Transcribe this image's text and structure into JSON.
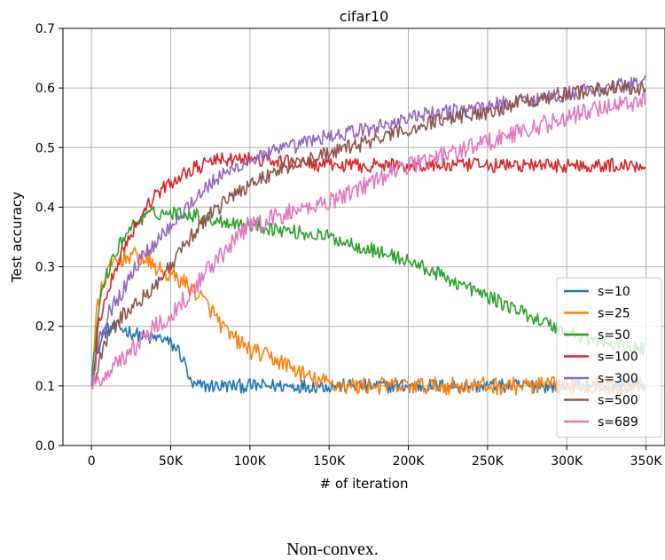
{
  "caption": "Non-convex.",
  "chart_data": {
    "type": "line",
    "title": "cifar10",
    "xlabel": "# of iteration",
    "ylabel": "Test accuracy",
    "xlim": [
      -18000,
      362000
    ],
    "ylim": [
      0.0,
      0.7
    ],
    "xticks": [
      0,
      50000,
      100000,
      150000,
      200000,
      250000,
      300000,
      350000
    ],
    "xtick_labels": [
      "0",
      "50K",
      "100K",
      "150K",
      "200K",
      "250K",
      "300K",
      "350K"
    ],
    "yticks": [
      0.0,
      0.1,
      0.2,
      0.3,
      0.4,
      0.5,
      0.6,
      0.7
    ],
    "ytick_labels": [
      "0.0",
      "0.1",
      "0.2",
      "0.3",
      "0.4",
      "0.5",
      "0.6",
      "0.7"
    ],
    "grid": true,
    "legend_position": "lower-right",
    "series": [
      {
        "name": "s=10",
        "color": "#1f77b4",
        "noise": 0.012,
        "x": [
          0,
          3000,
          8000,
          15000,
          25000,
          35000,
          45000,
          55000,
          60000,
          63000,
          70000,
          80000,
          100000,
          150000,
          200000,
          250000,
          300000,
          350000
        ],
        "y": [
          0.1,
          0.15,
          0.19,
          0.2,
          0.19,
          0.18,
          0.18,
          0.16,
          0.13,
          0.1,
          0.1,
          0.1,
          0.1,
          0.1,
          0.1,
          0.1,
          0.1,
          0.1
        ]
      },
      {
        "name": "s=25",
        "color": "#ff7f0e",
        "noise": 0.015,
        "x": [
          0,
          3000,
          8000,
          15000,
          25000,
          35000,
          45000,
          55000,
          65000,
          75000,
          85000,
          100000,
          120000,
          140000,
          160000,
          180000,
          200000,
          250000,
          300000,
          350000
        ],
        "y": [
          0.1,
          0.22,
          0.28,
          0.31,
          0.32,
          0.31,
          0.29,
          0.28,
          0.26,
          0.23,
          0.19,
          0.16,
          0.14,
          0.11,
          0.1,
          0.1,
          0.1,
          0.1,
          0.1,
          0.1
        ]
      },
      {
        "name": "s=50",
        "color": "#2ca02c",
        "noise": 0.012,
        "x": [
          0,
          5000,
          10000,
          20000,
          30000,
          40000,
          50000,
          60000,
          75000,
          100000,
          125000,
          150000,
          175000,
          200000,
          225000,
          250000,
          275000,
          300000,
          325000,
          350000
        ],
        "y": [
          0.1,
          0.24,
          0.29,
          0.35,
          0.38,
          0.39,
          0.39,
          0.39,
          0.38,
          0.37,
          0.36,
          0.35,
          0.33,
          0.31,
          0.28,
          0.25,
          0.22,
          0.19,
          0.17,
          0.16
        ]
      },
      {
        "name": "s=100",
        "color": "#d62728",
        "noise": 0.012,
        "x": [
          0,
          5000,
          10000,
          20000,
          30000,
          40000,
          50000,
          60000,
          70000,
          80000,
          100000,
          150000,
          200000,
          250000,
          300000,
          350000
        ],
        "y": [
          0.1,
          0.21,
          0.26,
          0.33,
          0.38,
          0.42,
          0.44,
          0.46,
          0.47,
          0.48,
          0.48,
          0.47,
          0.47,
          0.47,
          0.47,
          0.47
        ]
      },
      {
        "name": "s=300",
        "color": "#9467bd",
        "noise": 0.013,
        "x": [
          0,
          5000,
          10000,
          20000,
          30000,
          40000,
          50000,
          60000,
          75000,
          100000,
          125000,
          150000,
          175000,
          200000,
          225000,
          250000,
          275000,
          300000,
          325000,
          350000
        ],
        "y": [
          0.1,
          0.18,
          0.22,
          0.26,
          0.31,
          0.34,
          0.37,
          0.4,
          0.44,
          0.48,
          0.5,
          0.52,
          0.53,
          0.55,
          0.56,
          0.57,
          0.58,
          0.59,
          0.6,
          0.61
        ]
      },
      {
        "name": "s=500",
        "color": "#8c564b",
        "noise": 0.013,
        "x": [
          0,
          5000,
          10000,
          20000,
          30000,
          40000,
          50000,
          60000,
          75000,
          100000,
          125000,
          150000,
          175000,
          200000,
          225000,
          250000,
          275000,
          300000,
          325000,
          350000
        ],
        "y": [
          0.1,
          0.14,
          0.18,
          0.22,
          0.24,
          0.27,
          0.3,
          0.34,
          0.39,
          0.44,
          0.47,
          0.49,
          0.51,
          0.53,
          0.55,
          0.56,
          0.58,
          0.59,
          0.6,
          0.6
        ]
      },
      {
        "name": "s=689",
        "color": "#e377c2",
        "noise": 0.016,
        "x": [
          0,
          5000,
          10000,
          20000,
          30000,
          40000,
          50000,
          60000,
          75000,
          100000,
          125000,
          150000,
          175000,
          200000,
          225000,
          250000,
          275000,
          300000,
          325000,
          350000
        ],
        "y": [
          0.1,
          0.11,
          0.12,
          0.15,
          0.17,
          0.2,
          0.22,
          0.25,
          0.3,
          0.37,
          0.39,
          0.41,
          0.44,
          0.47,
          0.49,
          0.51,
          0.53,
          0.55,
          0.57,
          0.58
        ]
      }
    ]
  }
}
